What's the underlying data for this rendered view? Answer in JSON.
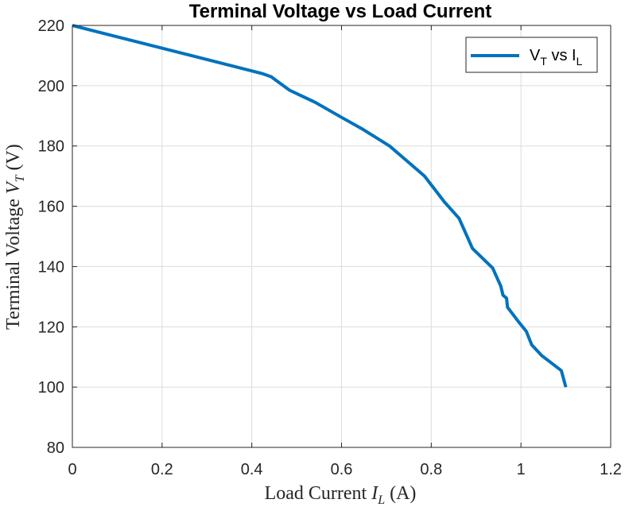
{
  "chart_data": {
    "type": "line",
    "title": "Terminal Voltage vs Load Current",
    "xlabel": {
      "text": "Load Current ",
      "var": "I",
      "sub": "L",
      "unit": " (A)"
    },
    "ylabel": {
      "text": "Terminal Voltage ",
      "var": "V",
      "sub": "T",
      "unit": " (V)"
    },
    "xlim": [
      0,
      1.2
    ],
    "ylim": [
      80,
      220
    ],
    "xticks": [
      0,
      0.2,
      0.4,
      0.6,
      0.8,
      1,
      1.2
    ],
    "xtick_labels": [
      "0",
      "0.2",
      "0.4",
      "0.6",
      "0.8",
      "1",
      "1.2"
    ],
    "yticks": [
      80,
      100,
      120,
      140,
      160,
      180,
      200,
      220
    ],
    "ytick_labels": [
      "80",
      "100",
      "120",
      "140",
      "160",
      "180",
      "200",
      "220"
    ],
    "grid": true,
    "legend_position": "top-right",
    "series": [
      {
        "name": {
          "main": "V",
          "sub1": "T",
          "mid": " vs I",
          "sub2": "L"
        },
        "color": "#0072BD",
        "x": [
          0,
          0.424,
          0.443,
          0.484,
          0.541,
          0.6,
          0.648,
          0.707,
          0.785,
          0.829,
          0.862,
          0.892,
          0.937,
          0.955,
          0.96,
          0.968,
          0.97,
          0.993,
          1.012,
          1.024,
          1.046,
          1.09,
          1.1
        ],
        "y": [
          220,
          204,
          203,
          198.5,
          194.5,
          189.5,
          185.5,
          180,
          170,
          161.5,
          156,
          146,
          139.5,
          133.5,
          130.5,
          129.5,
          126.5,
          122,
          118.5,
          114,
          110.5,
          105.5,
          100
        ]
      }
    ]
  }
}
